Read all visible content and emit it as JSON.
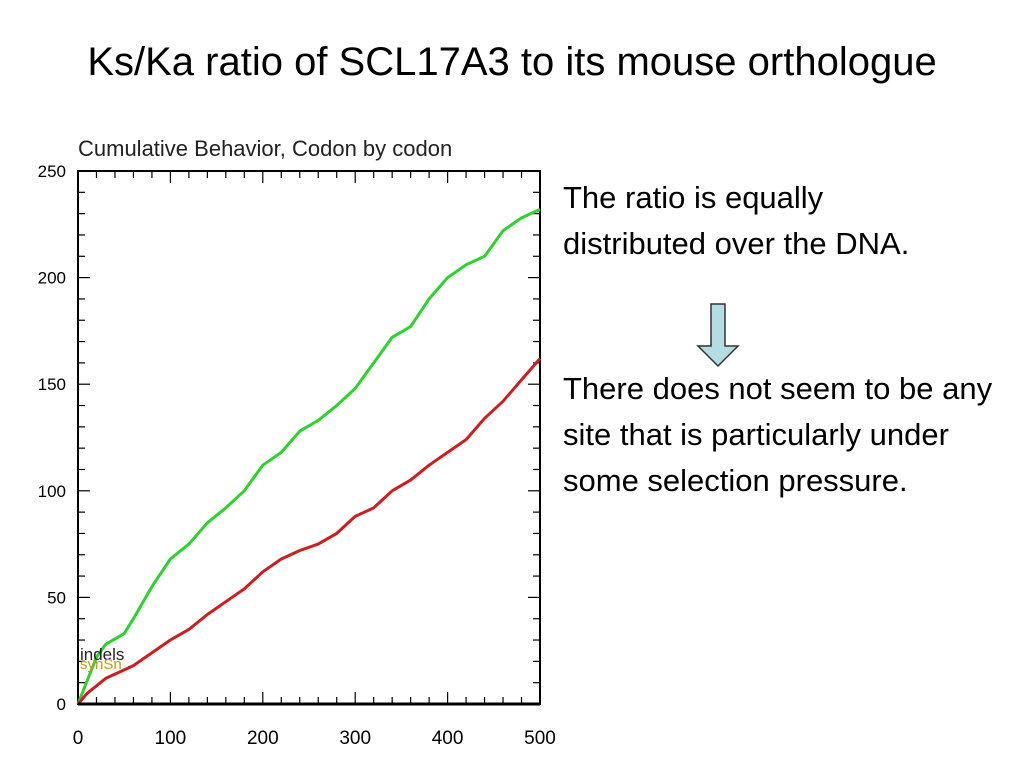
{
  "slide": {
    "title": "Ks/Ka ratio of SCL17A3 to its mouse orthologue",
    "text_1": "The ratio is equally distributed over the DNA.",
    "text_2": "There does not seem to be any site that is particularly under some selection pressure.",
    "arrow_icon": "down-arrow-icon",
    "arrow_fill": "#b3dde3"
  },
  "chart_data": {
    "type": "line",
    "title": "Cumulative Behavior, Codon by codon",
    "xlabel": "",
    "ylabel": "",
    "xlim": [
      0,
      500
    ],
    "ylim": [
      0,
      250
    ],
    "xticks": [
      0,
      100,
      200,
      300,
      400,
      500
    ],
    "yticks": [
      0,
      50,
      100,
      150,
      200,
      250
    ],
    "legend": [
      "indels",
      "synSn"
    ],
    "series": [
      {
        "color": "#2dd22d",
        "x": [
          0,
          20,
          30,
          50,
          60,
          80,
          100,
          120,
          140,
          160,
          180,
          200,
          220,
          240,
          260,
          280,
          300,
          320,
          340,
          360,
          380,
          400,
          420,
          440,
          460,
          480,
          500
        ],
        "y": [
          0,
          22,
          28,
          33,
          40,
          55,
          68,
          75,
          85,
          92,
          100,
          112,
          118,
          128,
          133,
          140,
          148,
          160,
          172,
          177,
          190,
          200,
          206,
          210,
          222,
          228,
          232
        ]
      },
      {
        "color": "#cc1e1e",
        "x": [
          0,
          10,
          30,
          50,
          60,
          90,
          100,
          120,
          140,
          160,
          180,
          200,
          220,
          240,
          260,
          280,
          300,
          320,
          340,
          360,
          380,
          400,
          420,
          440,
          460,
          480,
          500
        ],
        "y": [
          0,
          5,
          12,
          16,
          18,
          27,
          30,
          35,
          42,
          48,
          54,
          62,
          68,
          72,
          75,
          80,
          88,
          92,
          100,
          105,
          112,
          118,
          124,
          134,
          142,
          152,
          162
        ]
      },
      {
        "color": "#000000",
        "x": [
          0,
          500
        ],
        "y": [
          0,
          0
        ]
      }
    ]
  }
}
